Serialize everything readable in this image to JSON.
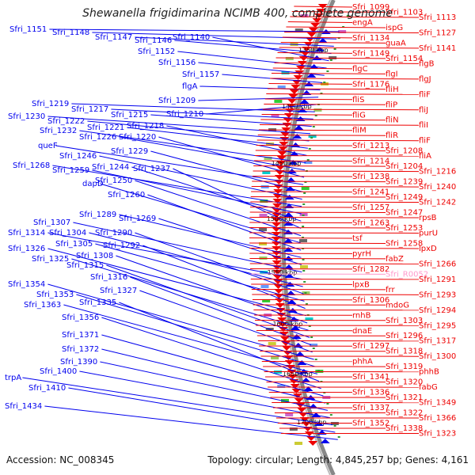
{
  "title": "Shewanella frigidimarina NCIMB 400, complete genome",
  "footer": {
    "accession": "Accession: NC_008345",
    "topology": "Topology: circular; Length: 4,845,257 bp; Genes: 4,161"
  },
  "colors": {
    "left_genes": "#0000ee",
    "right_genes": "#ee0000",
    "rna_gene": "#ff99cc",
    "backbone": "#888888",
    "tick": "#339933"
  },
  "kbp_labels": [
    "1350 kbp",
    "1400 kbp",
    "1450 kbp",
    "1500 kbp",
    "1550 kbp",
    "1600 kbp",
    "1650 kbp",
    "1700 kbp"
  ],
  "left_labels": [
    "Sfri_1151",
    "Sfri_1148",
    "Sfri_1147",
    "Sfri_1146",
    "Sfri_1140",
    "Sfri_1152",
    "Sfri_1156",
    "Sfri_1157",
    "flgA",
    "Sfri_1209",
    "Sfri_1210",
    "Sfri_1219",
    "Sfri_1217",
    "Sfri_1215",
    "Sfri_1230",
    "Sfri_1222",
    "Sfri_1221",
    "Sfri_1218",
    "Sfri_1232",
    "Sfri_1226",
    "Sfri_1220",
    "queF",
    "Sfri_1229",
    "Sfri_1246",
    "Sfri_1268",
    "Sfri_1259",
    "Sfri_1244",
    "Sfri_1237",
    "Sfri_1250",
    "dapD",
    "Sfri_1260",
    "Sfri_1289",
    "Sfri_1269",
    "Sfri_1307",
    "Sfri_1314",
    "Sfri_1304",
    "Sfri_1290",
    "Sfri_1305",
    "Sfri_1292",
    "Sfri_1326",
    "Sfri_1308",
    "Sfri_1325",
    "Sfri_1315",
    "Sfri_1316",
    "Sfri_1327",
    "Sfri_1354",
    "Sfri_1353",
    "Sfri_1363",
    "Sfri_1335",
    "Sfri_1356",
    "Sfri_1371",
    "Sfri_1372",
    "Sfri_1390",
    "Sfri_1400",
    "trpA",
    "Sfri_1410",
    "Sfri_1434"
  ],
  "right_labels": [
    "Sfri_1099",
    "Sfri_1103",
    "Sfri_1113",
    "engA",
    "ispG",
    "Sfri_1127",
    "Sfri_1134",
    "guaA",
    "Sfri_1141",
    "Sfri_1149",
    "Sfri_1154",
    "flgB",
    "flgC",
    "flgI",
    "flgJ",
    "Sfri_1176",
    "fliH",
    "fliF",
    "fliS",
    "fliP",
    "fliJ",
    "fliG",
    "fliN",
    "fliI",
    "fliM",
    "fliR",
    "fliF",
    "Sfri_1213",
    "Sfri_1208",
    "fliA",
    "Sfri_1214",
    "Sfri_1204",
    "Sfri_1216",
    "Sfri_1238",
    "Sfri_1239",
    "Sfri_1240",
    "Sfri_1241",
    "Sfri_1249",
    "Sfri_1242",
    "Sfri_1257",
    "Sfri_1247",
    "rpsB",
    "Sfri_1263",
    "Sfri_1253",
    "purU",
    "tsf",
    "Sfri_1258",
    "lpxD",
    "pyrH",
    "fabZ",
    "Sfri_1266",
    "Sfri_1282",
    "Sfri_R0052",
    "Sfri_1291",
    "lpxB",
    "frr",
    "Sfri_1293",
    "Sfri_1306",
    "mdoG",
    "Sfri_1294",
    "rnhB",
    "Sfri_1303",
    "Sfri_1295",
    "dnaE",
    "Sfri_1296",
    "Sfri_1317",
    "Sfri_1297",
    "Sfri_1318",
    "Sfri_1300",
    "phhA",
    "Sfri_1319",
    "phhB",
    "Sfri_1341",
    "Sfri_1320",
    "fabG",
    "Sfri_1336",
    "Sfri_1321",
    "Sfri_1349",
    "Sfri_1337",
    "Sfri_1322",
    "Sfri_1366",
    "Sfri_1352",
    "Sfri_1338",
    "Sfri_1323"
  ]
}
